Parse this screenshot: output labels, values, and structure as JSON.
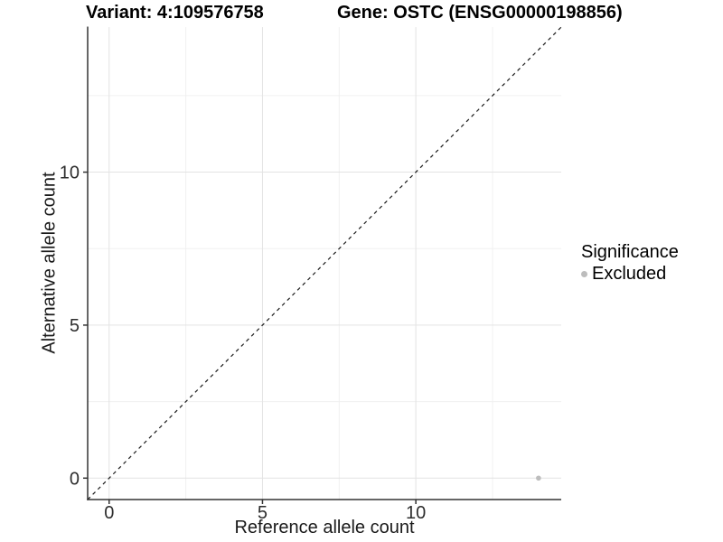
{
  "titles": {
    "variant": "Variant: 4:109576758",
    "gene": "Gene: OSTC (ENSG00000198856)"
  },
  "legend": {
    "title": "Significance",
    "items": [
      {
        "label": "Excluded",
        "color": "#bdbdbd"
      }
    ]
  },
  "colors": {
    "background": "#ffffff",
    "grid_major": "#e3e3e3",
    "grid_minor": "#f0f0f0",
    "axis_line": "#333333",
    "tick_text": "#2e2e2e",
    "identity_line": "#1a1a1a",
    "excluded_point": "#bdbdbd"
  },
  "chart_data": {
    "type": "scatter",
    "title": "",
    "xlabel": "Reference allele count",
    "ylabel": "Alternative allele count",
    "xlim": [
      -0.7,
      14.74
    ],
    "ylim": [
      -0.7,
      14.74
    ],
    "x_ticks": [
      0,
      5,
      10
    ],
    "y_ticks": [
      0,
      5,
      10
    ],
    "x_minor_ticks": [
      2.5,
      7.5,
      12.5
    ],
    "y_minor_ticks": [
      2.5,
      7.5,
      12.5
    ],
    "grid": "major+minor",
    "legend_position": "right",
    "series": [
      {
        "name": "Excluded",
        "color": "#bdbdbd",
        "points": [
          {
            "x": 14,
            "y": 0
          }
        ]
      }
    ],
    "reference_line": {
      "type": "identity y=x",
      "slope": 1,
      "intercept": 0,
      "style": "dashed",
      "color": "#1a1a1a"
    }
  }
}
